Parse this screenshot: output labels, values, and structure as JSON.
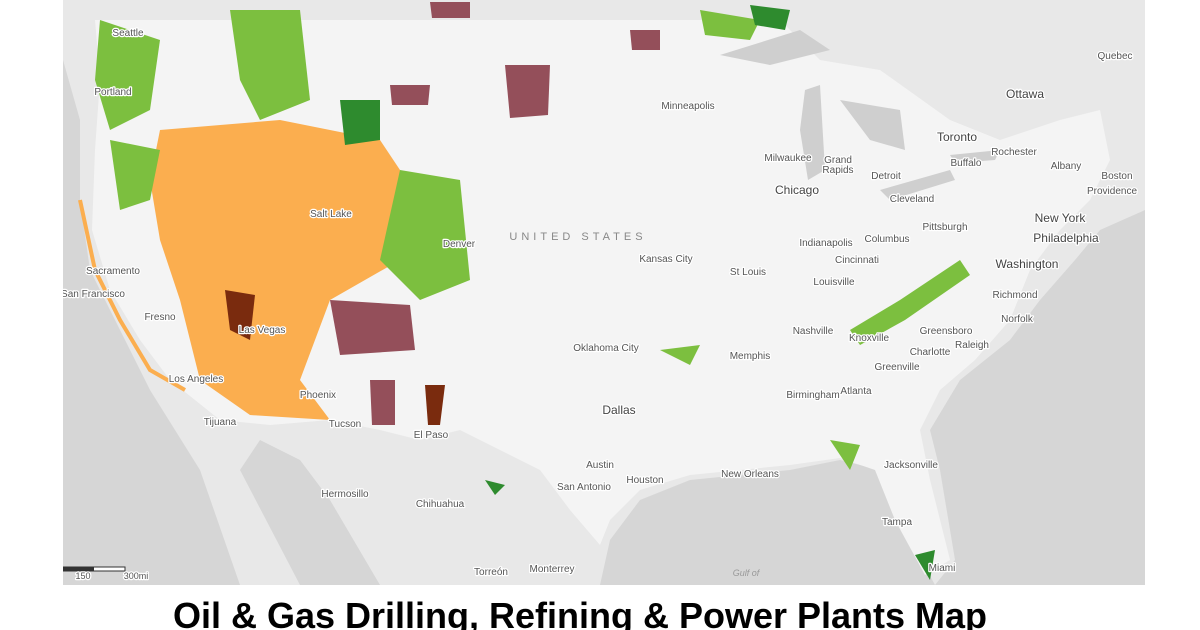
{
  "map": {
    "country_label": "UNITED STATES",
    "water_label": "Gulf of",
    "cities": [
      "Seattle",
      "Portland",
      "Sacramento",
      "San Francisco",
      "Fresno",
      "Las Vegas",
      "Los Angeles",
      "Tijuana",
      "Phoenix",
      "Tucson",
      "El Paso",
      "Salt Lake",
      "Denver",
      "Kansas City",
      "Oklahoma City",
      "Dallas",
      "Austin",
      "San Antonio",
      "Houston",
      "New Orleans",
      "Minneapolis",
      "Milwaukee",
      "Grand",
      "Rapids",
      "Chicago",
      "Detroit",
      "Cleveland",
      "Toronto",
      "Rochester",
      "Buffalo",
      "Albany",
      "Boston",
      "Providence",
      "Quebec",
      "Ottawa",
      "New York",
      "Philadelphia",
      "Pittsburgh",
      "Columbus",
      "Indianapolis",
      "Cincinnati",
      "St Louis",
      "Louisville",
      "Washington",
      "Richmond",
      "Norfolk",
      "Nashville",
      "Knoxville",
      "Greensboro",
      "Raleigh",
      "Charlotte",
      "Greenville",
      "Memphis",
      "Birmingham",
      "Atlanta",
      "Jacksonville",
      "Tampa",
      "Miami",
      "Hermosillo",
      "Chihuahua",
      "Torreón",
      "Monterrey"
    ],
    "scale_labels": [
      "150",
      "300mi"
    ]
  },
  "title": "Oil & Gas Drilling, Refining & Power Plants Map"
}
